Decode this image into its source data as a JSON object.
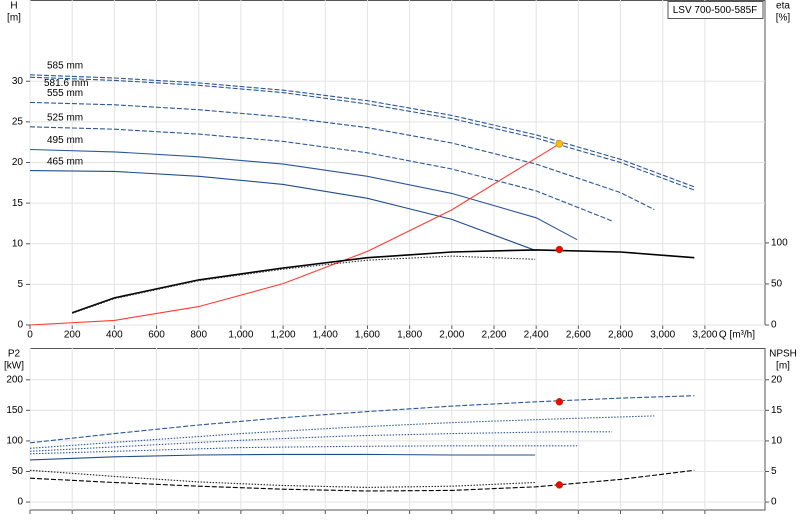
{
  "chart_data": [
    {
      "type": "line",
      "title": "LSV 700-500-585F",
      "ylabel": [
        "H",
        "[m]"
      ],
      "y2label": [
        "eta",
        "[%]"
      ],
      "xlabel": "Q [m³/h]",
      "xlim": [
        0,
        3485
      ],
      "ylim": [
        0,
        40
      ],
      "y2lim": [
        0,
        396
      ],
      "xticks": [
        0,
        200,
        400,
        600,
        800,
        {
          "value": 1000,
          "label": "1,000"
        },
        {
          "value": 1200,
          "label": "1,200"
        },
        {
          "value": 1400,
          "label": "1,400"
        },
        {
          "value": 1600,
          "label": "1,600"
        },
        {
          "value": 1800,
          "label": "1,800"
        },
        {
          "value": 2000,
          "label": "2,000"
        },
        {
          "value": 2200,
          "label": "2,200"
        },
        {
          "value": 2400,
          "label": "2,400"
        },
        {
          "value": 2600,
          "label": "2,600"
        },
        {
          "value": 2800,
          "label": "2,800"
        },
        {
          "value": 3000,
          "label": "3,000"
        },
        {
          "value": 3200,
          "label": "3,200"
        }
      ],
      "yticks": [
        0,
        5,
        10,
        15,
        20,
        25,
        30
      ],
      "y2ticks": [
        0,
        50,
        100
      ],
      "grid": true,
      "series": [
        {
          "name": "585 mm",
          "color": "#2b5797",
          "style": "dashed",
          "x": [
            0,
            400,
            800,
            1200,
            1600,
            2000,
            2400,
            2800,
            3150
          ],
          "values": [
            30.8,
            30.4,
            29.8,
            28.9,
            27.6,
            25.8,
            23.4,
            20.4,
            17.0
          ]
        },
        {
          "name": "581.6 mm",
          "color": "#2b5797",
          "style": "dashed",
          "x": [
            0,
            400,
            800,
            1200,
            1600,
            2000,
            2400,
            2800,
            3150
          ],
          "values": [
            30.5,
            30.1,
            29.5,
            28.6,
            27.2,
            25.4,
            23.0,
            20.0,
            16.6
          ]
        },
        {
          "name": "555 mm",
          "color": "#2b5797",
          "style": "dashed",
          "x": [
            0,
            400,
            800,
            1200,
            1600,
            2000,
            2400,
            2800,
            2960
          ],
          "values": [
            27.4,
            27.1,
            26.5,
            25.6,
            24.3,
            22.4,
            19.8,
            16.3,
            14.2
          ]
        },
        {
          "name": "525 mm",
          "color": "#2b5797",
          "style": "dashed",
          "x": [
            0,
            400,
            800,
            1200,
            1600,
            2000,
            2400,
            2760
          ],
          "values": [
            24.4,
            24.1,
            23.5,
            22.6,
            21.2,
            19.2,
            16.5,
            12.8
          ]
        },
        {
          "name": "495 mm",
          "color": "#2b5797",
          "style": "solid",
          "x": [
            0,
            400,
            800,
            1200,
            1600,
            2000,
            2400,
            2594
          ],
          "values": [
            21.6,
            21.3,
            20.7,
            19.8,
            18.3,
            16.2,
            13.2,
            10.5
          ]
        },
        {
          "name": "465 mm",
          "color": "#1f4e8c",
          "style": "solid",
          "x": [
            0,
            400,
            800,
            1200,
            1600,
            2000,
            2395
          ],
          "values": [
            19.0,
            18.9,
            18.3,
            17.3,
            15.6,
            13.0,
            9.2
          ]
        },
        {
          "color": "#ff3b30",
          "style": "solid",
          "x": [
            0,
            400,
            800,
            1200,
            1600,
            2000,
            2510
          ],
          "values": [
            0,
            0.57,
            2.27,
            5.1,
            9.06,
            14.16,
            22.3
          ]
        },
        {
          "color": "#000000",
          "style": "solid",
          "axis": "y2",
          "x": [
            200,
            400,
            800,
            1200,
            1600,
            2000,
            2400,
            2800,
            3150
          ],
          "values": [
            15,
            33,
            55,
            69.5,
            82,
            89,
            91.5,
            89,
            82
          ]
        },
        {
          "color": "#333333",
          "style": "dotted",
          "axis": "y2",
          "x": [
            200,
            400,
            800,
            1200,
            1600,
            2000,
            2395
          ],
          "values": [
            14,
            32,
            54,
            68,
            79,
            84,
            80
          ]
        }
      ],
      "markers": [
        {
          "x": 2510,
          "value": 22.3,
          "color": "#ffc000",
          "axis": "y"
        },
        {
          "x": 2510,
          "value": 92,
          "color": "#ff0000",
          "axis": "y2"
        }
      ]
    },
    {
      "type": "line",
      "ylabel": [
        "P2",
        "[kW]"
      ],
      "y2label": [
        "NPSH",
        "[m]"
      ],
      "xlim": [
        0,
        3485
      ],
      "ylim": [
        -13,
        252
      ],
      "y2lim": [
        -1.3,
        25.2
      ],
      "xticks": [
        0,
        200,
        400,
        600,
        800,
        1000,
        1200,
        1400,
        1600,
        1800,
        2000,
        2200,
        2400,
        2600,
        2800,
        3000,
        3200
      ],
      "yticks": [
        0,
        50,
        100,
        150,
        200
      ],
      "y2ticks": [
        0,
        5,
        10,
        15,
        20
      ],
      "grid": true,
      "series": [
        {
          "color": "#2b5797",
          "style": "dashed",
          "x": [
            0,
            400,
            800,
            1200,
            1600,
            2000,
            2400,
            2800,
            3150
          ],
          "values": [
            97,
            112,
            126,
            138,
            148,
            157,
            164,
            170,
            174
          ]
        },
        {
          "color": "#2b5797",
          "style": "dotted",
          "x": [
            0,
            500,
            1000,
            1500,
            2000,
            2500,
            2960
          ],
          "values": [
            88,
            100,
            112,
            122,
            130,
            136,
            141
          ]
        },
        {
          "color": "#2b5797",
          "style": "dotted",
          "x": [
            0,
            500,
            1000,
            1500,
            2000,
            2500,
            2760
          ],
          "values": [
            83,
            92,
            101,
            108,
            112,
            115,
            115
          ]
        },
        {
          "color": "#2b5797",
          "style": "dotted",
          "x": [
            0,
            500,
            1000,
            1500,
            2000,
            2594
          ],
          "values": [
            79,
            84,
            89,
            91,
            92,
            92
          ]
        },
        {
          "color": "#1f4e8c",
          "style": "solid",
          "x": [
            0,
            400,
            800,
            1200,
            1600,
            2000,
            2395
          ],
          "values": [
            69,
            74,
            77,
            78,
            78,
            77,
            77
          ]
        },
        {
          "color": "#000000",
          "style": "dashed",
          "axis": "y2",
          "x": [
            0,
            400,
            800,
            1200,
            1600,
            2000,
            2400,
            2800,
            3150
          ],
          "values": [
            3.9,
            3.2,
            2.6,
            2.1,
            1.8,
            1.9,
            2.5,
            3.7,
            5.2
          ]
        },
        {
          "color": "#222222",
          "style": "dotted",
          "axis": "y2",
          "x": [
            0,
            400,
            800,
            1200,
            1600,
            2000,
            2395
          ],
          "values": [
            5.2,
            4.2,
            3.3,
            2.7,
            2.4,
            2.6,
            3.2
          ]
        }
      ],
      "markers": [
        {
          "x": 2510,
          "value": 164,
          "color": "#ff0000",
          "axis": "y"
        },
        {
          "x": 2510,
          "value": 2.8,
          "color": "#ff0000",
          "axis": "y2"
        }
      ]
    }
  ]
}
